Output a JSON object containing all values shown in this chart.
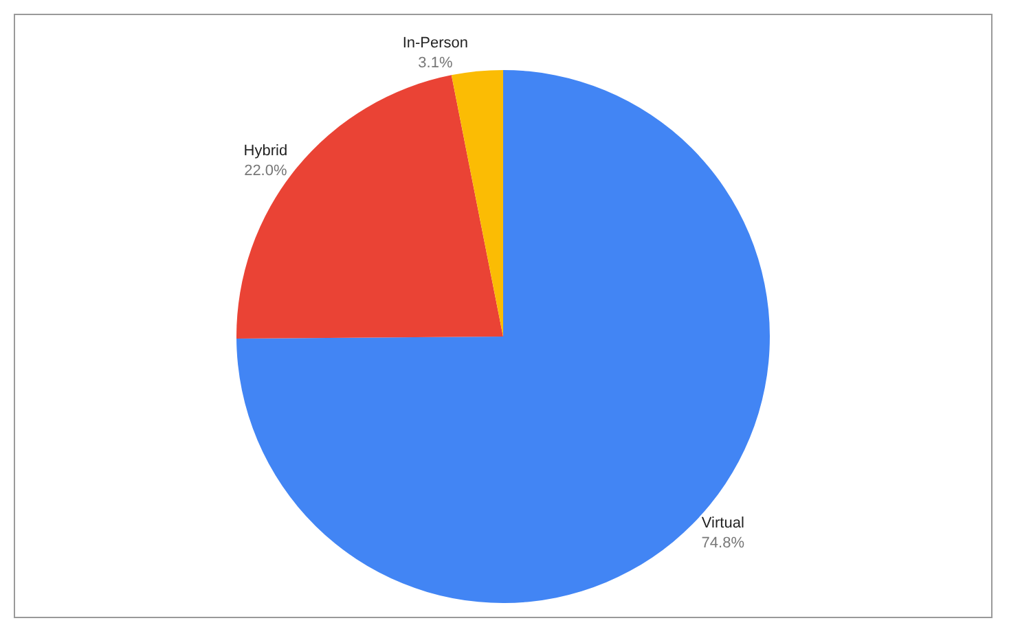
{
  "chart_data": {
    "type": "pie",
    "categories": [
      "Virtual",
      "Hybrid",
      "In-Person"
    ],
    "values": [
      74.8,
      22.0,
      3.1
    ],
    "value_labels": [
      "74.8%",
      "22.0%",
      "3.1%"
    ],
    "colors": [
      "#4285f4",
      "#ea4335",
      "#fbbc04"
    ],
    "legend": false
  }
}
